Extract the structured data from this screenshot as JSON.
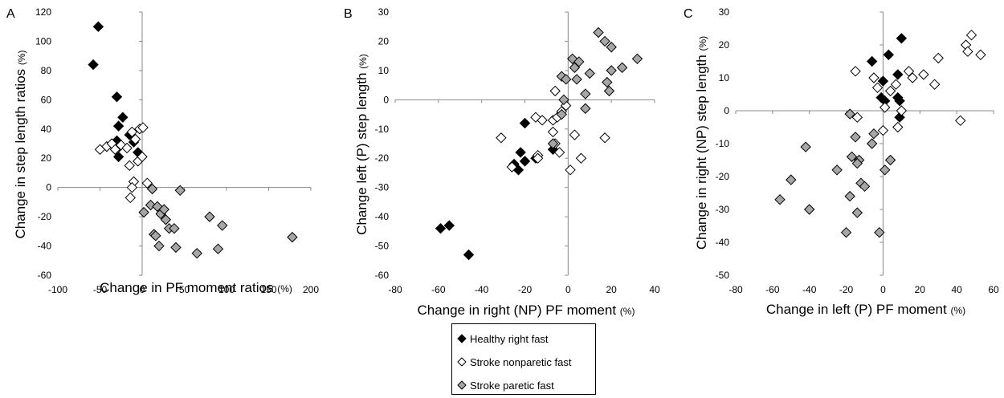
{
  "legend": {
    "healthy": "Healthy right fast",
    "nonparetic": "Stroke nonparetic fast",
    "paretic": "Stroke paretic fast"
  },
  "colors": {
    "healthy": "#000000",
    "nonparetic": "#ffffff",
    "paretic": "#a6a6a6"
  },
  "chart_data": [
    {
      "type": "scatter",
      "panel": "A",
      "xlabel": "Change in PF moment ratios",
      "xunit": "(%)",
      "ylabel": "Change in step length ratios",
      "yunit": "(%)",
      "xlim": [
        -100,
        200
      ],
      "xticks": [
        -100,
        -50,
        0,
        50,
        100,
        150,
        200
      ],
      "ylim": [
        -60,
        120
      ],
      "yticks": [
        -60,
        -40,
        -20,
        0,
        20,
        40,
        60,
        80,
        100,
        120
      ],
      "series": [
        {
          "key": "healthy",
          "name": "Healthy right fast",
          "points": [
            [
              -52,
              110
            ],
            [
              -58,
              84
            ],
            [
              -30,
              62
            ],
            [
              -23,
              48
            ],
            [
              -28,
              42
            ],
            [
              -30,
              32
            ],
            [
              -27,
              28
            ],
            [
              -28,
              21
            ],
            [
              -15,
              36
            ],
            [
              -10,
              31
            ],
            [
              -5,
              24
            ]
          ]
        },
        {
          "key": "nonparetic",
          "name": "Stroke nonparetic fast",
          "points": [
            [
              -50,
              26
            ],
            [
              -42,
              28
            ],
            [
              -36,
              30
            ],
            [
              -32,
              26
            ],
            [
              -25,
              29
            ],
            [
              -18,
              27
            ],
            [
              -15,
              15
            ],
            [
              -12,
              38
            ],
            [
              -8,
              33
            ],
            [
              -3,
              40
            ],
            [
              1,
              41
            ],
            [
              -5,
              18
            ],
            [
              0,
              21
            ],
            [
              -10,
              4
            ],
            [
              -12,
              0
            ],
            [
              -14,
              -7
            ],
            [
              6,
              3
            ]
          ]
        },
        {
          "key": "paretic",
          "name": "Stroke paretic fast",
          "points": [
            [
              2,
              -17
            ],
            [
              10,
              -12
            ],
            [
              12,
              -1
            ],
            [
              18,
              -13
            ],
            [
              22,
              -18
            ],
            [
              26,
              -15
            ],
            [
              28,
              -22
            ],
            [
              32,
              -28
            ],
            [
              38,
              -28
            ],
            [
              14,
              -32
            ],
            [
              16,
              -33
            ],
            [
              20,
              -40
            ],
            [
              40,
              -41
            ],
            [
              45,
              -2
            ],
            [
              65,
              -45
            ],
            [
              80,
              -20
            ],
            [
              90,
              -42
            ],
            [
              95,
              -26
            ],
            [
              178,
              -34
            ]
          ]
        }
      ]
    },
    {
      "type": "scatter",
      "panel": "B",
      "xlabel": "Change in right (NP) PF moment",
      "xunit": "(%)",
      "ylabel": "Change left (P) step length",
      "yunit": "(%)",
      "xlim": [
        -80,
        40
      ],
      "xticks": [
        -80,
        -60,
        -40,
        -20,
        0,
        20,
        40
      ],
      "ylim": [
        -60,
        30
      ],
      "yticks": [
        -60,
        -50,
        -40,
        -30,
        -20,
        -10,
        0,
        10,
        20,
        30
      ],
      "series": [
        {
          "key": "healthy",
          "name": "Healthy right fast",
          "points": [
            [
              -59,
              -44
            ],
            [
              -55,
              -43
            ],
            [
              -46,
              -53
            ],
            [
              -20,
              -8
            ],
            [
              -22,
              -18
            ],
            [
              -20,
              -21
            ],
            [
              -25,
              -22
            ],
            [
              -23,
              -24
            ],
            [
              -15,
              -20
            ],
            [
              -7,
              -17
            ]
          ]
        },
        {
          "key": "nonparetic",
          "name": "Stroke nonparetic fast",
          "points": [
            [
              -31,
              -13
            ],
            [
              -26,
              -23
            ],
            [
              -14,
              -19
            ],
            [
              -15,
              -6
            ],
            [
              -12,
              -7
            ],
            [
              -7,
              -7
            ],
            [
              -5,
              -6
            ],
            [
              -3,
              -4
            ],
            [
              -1,
              -2
            ],
            [
              -6,
              3
            ],
            [
              -7,
              -11
            ],
            [
              -6,
              -15
            ],
            [
              -4,
              -18
            ],
            [
              -14,
              -20
            ],
            [
              1,
              -24
            ],
            [
              3,
              -12
            ],
            [
              6,
              -20
            ],
            [
              17,
              -13
            ]
          ]
        },
        {
          "key": "paretic",
          "name": "Stroke paretic fast",
          "points": [
            [
              -7,
              -15
            ],
            [
              -3,
              8
            ],
            [
              -1,
              7
            ],
            [
              -2,
              0
            ],
            [
              -3,
              -5
            ],
            [
              3,
              11
            ],
            [
              2,
              14
            ],
            [
              4,
              7
            ],
            [
              5,
              13
            ],
            [
              8,
              -3
            ],
            [
              8,
              2
            ],
            [
              10,
              9
            ],
            [
              14,
              23
            ],
            [
              17,
              20
            ],
            [
              20,
              18
            ],
            [
              18,
              6
            ],
            [
              19,
              3
            ],
            [
              20,
              10
            ],
            [
              25,
              11
            ],
            [
              32,
              14
            ]
          ]
        }
      ]
    },
    {
      "type": "scatter",
      "panel": "C",
      "xlabel": "Change in left (P) PF moment",
      "xunit": "(%)",
      "ylabel": "Change in right (NP) step length",
      "yunit": "(%)",
      "xlim": [
        -80,
        60
      ],
      "xticks": [
        -80,
        -60,
        -40,
        -20,
        0,
        20,
        40,
        60
      ],
      "ylim": [
        -50,
        30
      ],
      "yticks": [
        -50,
        -40,
        -30,
        -20,
        -10,
        0,
        10,
        20,
        30
      ],
      "series": [
        {
          "key": "healthy",
          "name": "Healthy right fast",
          "points": [
            [
              10,
              22
            ],
            [
              3,
              17
            ],
            [
              -6,
              15
            ],
            [
              8,
              11
            ],
            [
              0,
              9
            ],
            [
              9,
              3
            ],
            [
              -1,
              4
            ],
            [
              1,
              3
            ],
            [
              9,
              -2
            ],
            [
              8,
              4
            ]
          ]
        },
        {
          "key": "nonparetic",
          "name": "Stroke nonparetic fast",
          "points": [
            [
              -15,
              12
            ],
            [
              -5,
              10
            ],
            [
              -3,
              7
            ],
            [
              4,
              6
            ],
            [
              7,
              8
            ],
            [
              1,
              1
            ],
            [
              0,
              -6
            ],
            [
              8,
              -5
            ],
            [
              10,
              0
            ],
            [
              14,
              12
            ],
            [
              16,
              10
            ],
            [
              22,
              11
            ],
            [
              28,
              8
            ],
            [
              30,
              16
            ],
            [
              42,
              -3
            ],
            [
              45,
              20
            ],
            [
              46,
              18
            ],
            [
              48,
              23
            ],
            [
              53,
              17
            ],
            [
              -14,
              -2
            ]
          ]
        },
        {
          "key": "paretic",
          "name": "Stroke paretic fast",
          "points": [
            [
              -56,
              -27
            ],
            [
              -50,
              -21
            ],
            [
              -42,
              -11
            ],
            [
              -40,
              -30
            ],
            [
              -25,
              -18
            ],
            [
              -18,
              -1
            ],
            [
              -15,
              -8
            ],
            [
              -13,
              -15
            ],
            [
              -12,
              -22
            ],
            [
              -10,
              -23
            ],
            [
              -6,
              -10
            ],
            [
              -5,
              -7
            ],
            [
              -17,
              -14
            ],
            [
              -14,
              -16
            ],
            [
              -18,
              -26
            ],
            [
              -14,
              -31
            ],
            [
              -20,
              -37
            ],
            [
              -2,
              -37
            ],
            [
              1,
              -18
            ],
            [
              4,
              -15
            ]
          ]
        }
      ]
    }
  ]
}
